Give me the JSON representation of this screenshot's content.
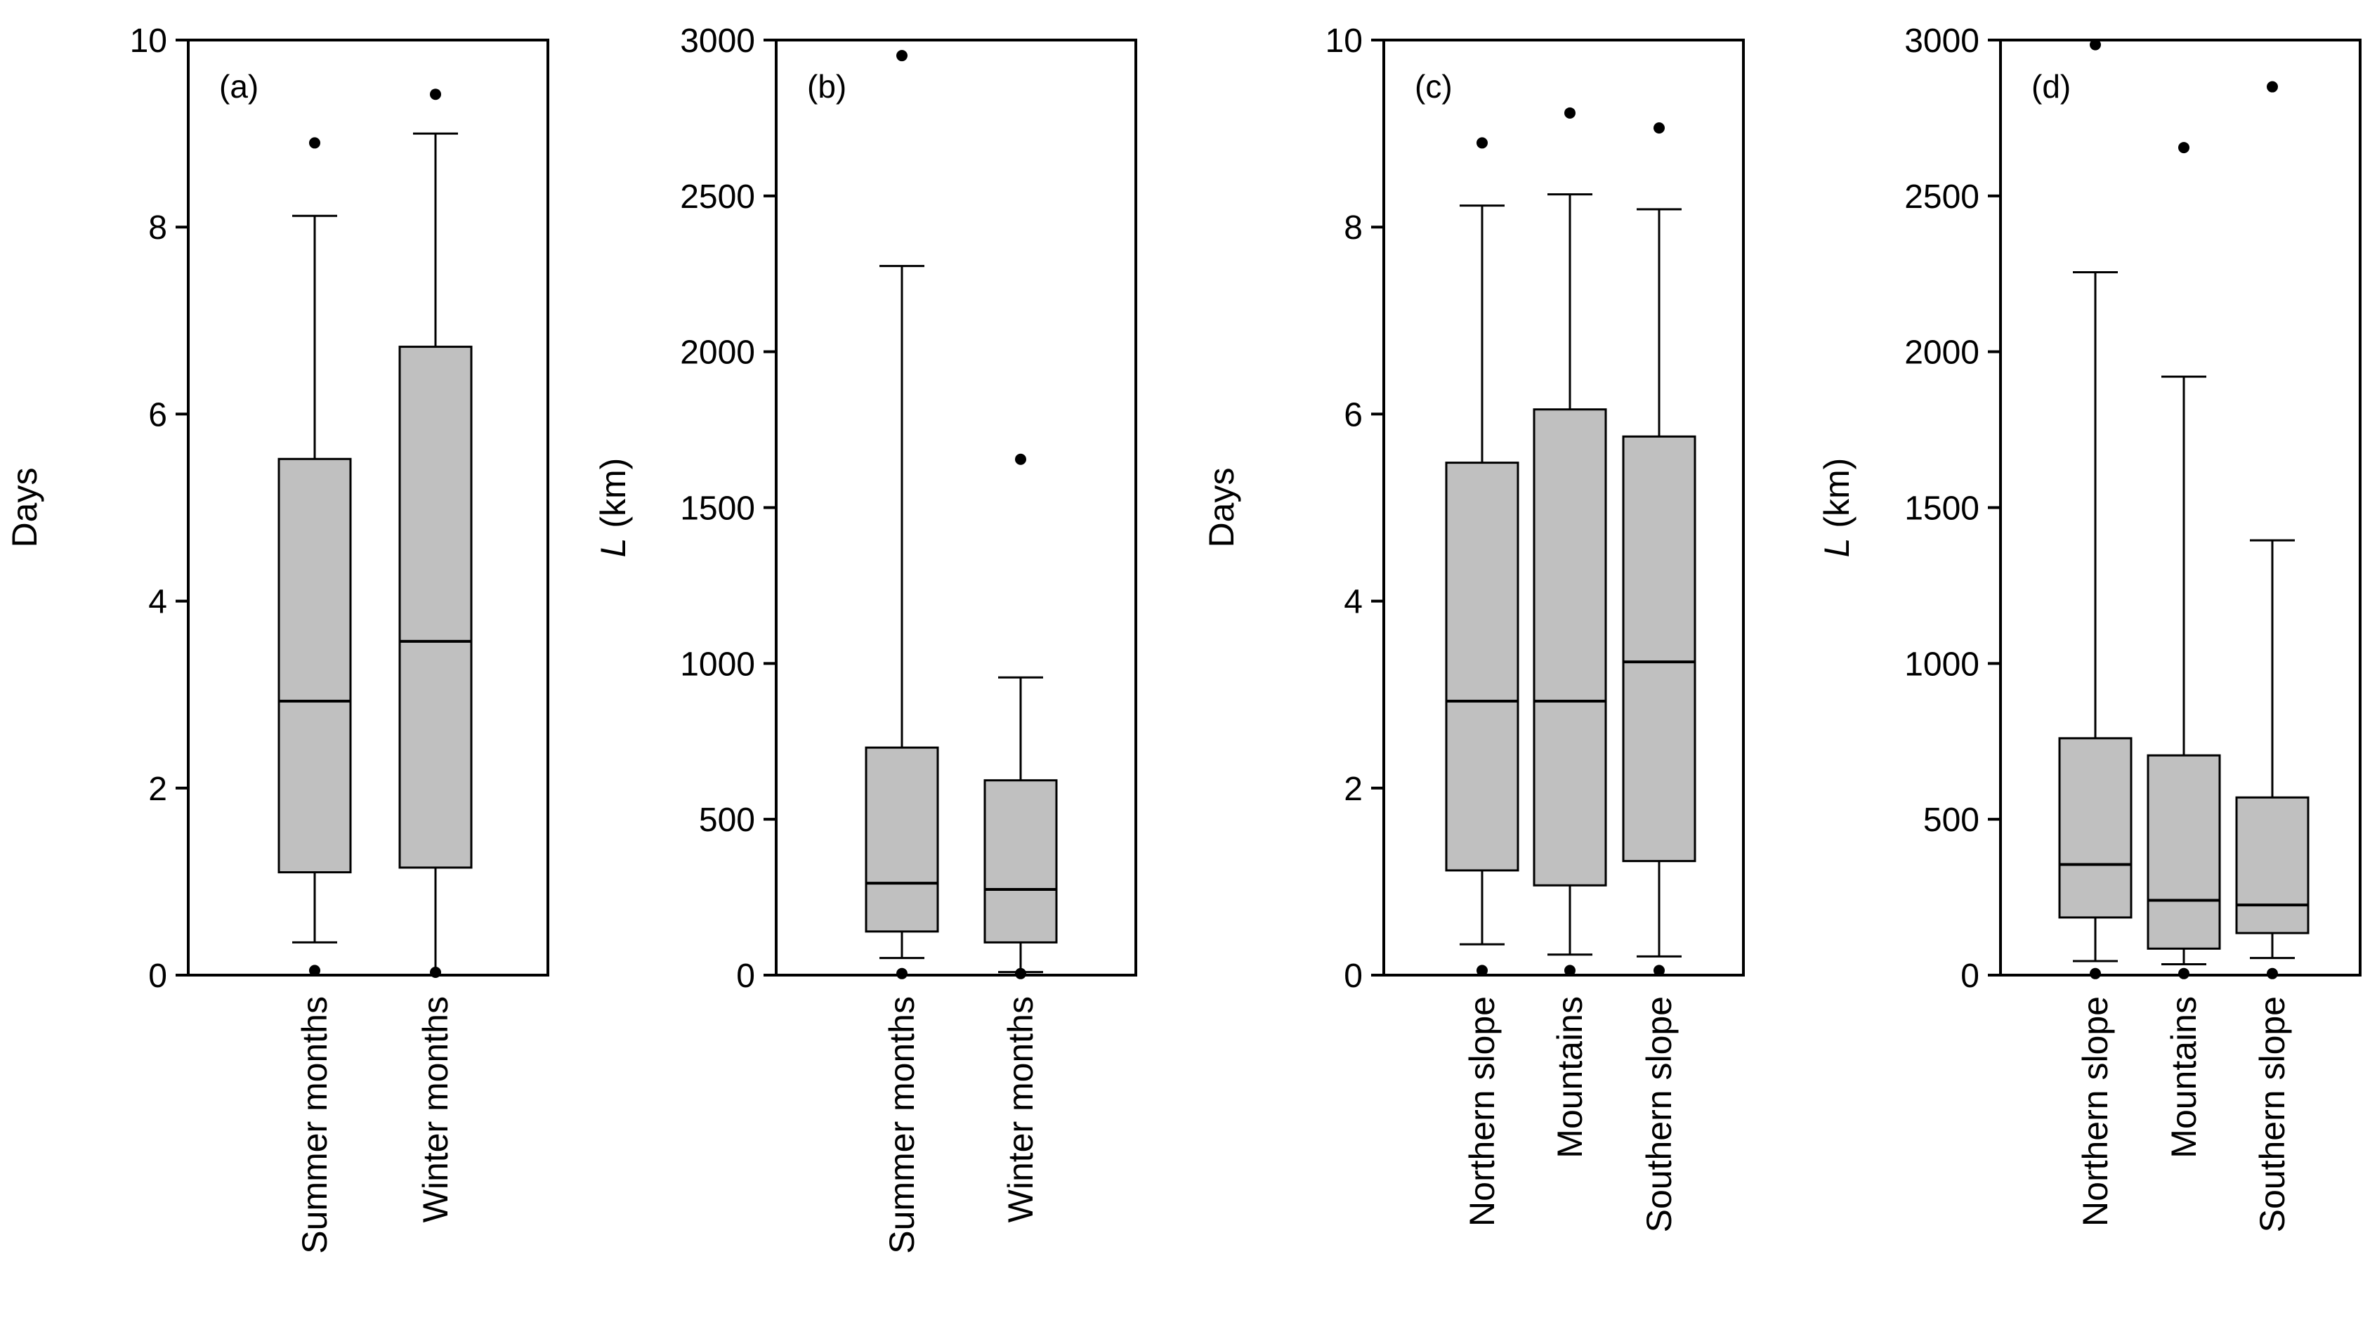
{
  "chart_data": [
    {
      "type": "boxplot",
      "panel_label": "(a)",
      "ylabel": "Days",
      "ylim": [
        0,
        10
      ],
      "yticks": [
        0,
        2,
        4,
        6,
        8,
        10
      ],
      "categories": [
        "Summer months",
        "Winter months"
      ],
      "boxes": [
        {
          "name": "Summer months",
          "whisker_low": 0.35,
          "q1": 1.1,
          "median": 2.93,
          "q3": 5.52,
          "whisker_high": 8.12,
          "outliers": [
            8.9,
            0.05
          ]
        },
        {
          "name": "Winter months",
          "whisker_low": 0.0,
          "q1": 1.15,
          "median": 3.57,
          "q3": 6.72,
          "whisker_high": 9.0,
          "outliers": [
            9.42,
            0.03
          ]
        }
      ]
    },
    {
      "type": "boxplot",
      "panel_label": "(b)",
      "ylabel": "L (km)",
      "ylabel_var": "L",
      "ylabel_unit": " (km)",
      "ylim": [
        0,
        3000
      ],
      "yticks": [
        0,
        500,
        1000,
        1500,
        2000,
        2500,
        3000
      ],
      "categories": [
        "Summer months",
        "Winter months"
      ],
      "boxes": [
        {
          "name": "Summer months",
          "whisker_low": 55,
          "q1": 140,
          "median": 295,
          "q3": 730,
          "whisker_high": 2275,
          "outliers": [
            2950,
            5
          ]
        },
        {
          "name": "Winter months",
          "whisker_low": 10,
          "q1": 105,
          "median": 275,
          "q3": 625,
          "whisker_high": 955,
          "outliers": [
            1655,
            5
          ]
        }
      ]
    },
    {
      "type": "boxplot",
      "panel_label": "(c)",
      "ylabel": "Days",
      "ylim": [
        0,
        10
      ],
      "yticks": [
        0,
        2,
        4,
        6,
        8,
        10
      ],
      "categories": [
        "Northern slope",
        "Mountains",
        "Southern slope"
      ],
      "boxes": [
        {
          "name": "Northern slope",
          "whisker_low": 0.33,
          "q1": 1.12,
          "median": 2.93,
          "q3": 5.48,
          "whisker_high": 8.23,
          "outliers": [
            8.9,
            0.05
          ]
        },
        {
          "name": "Mountains",
          "whisker_low": 0.22,
          "q1": 0.96,
          "median": 2.93,
          "q3": 6.05,
          "whisker_high": 8.35,
          "outliers": [
            9.22,
            0.05
          ]
        },
        {
          "name": "Southern slope",
          "whisker_low": 0.2,
          "q1": 1.22,
          "median": 3.35,
          "q3": 5.76,
          "whisker_high": 8.19,
          "outliers": [
            9.06,
            0.05
          ]
        }
      ]
    },
    {
      "type": "boxplot",
      "panel_label": "(d)",
      "ylabel": "L (km)",
      "ylabel_var": "L",
      "ylabel_unit": " (km)",
      "ylim": [
        0,
        3000
      ],
      "yticks": [
        0,
        500,
        1000,
        1500,
        2000,
        2500,
        3000
      ],
      "categories": [
        "Northern slope",
        "Mountains",
        "Southern slope"
      ],
      "boxes": [
        {
          "name": "Northern slope",
          "whisker_low": 45,
          "q1": 185,
          "median": 355,
          "q3": 760,
          "whisker_high": 2255,
          "outliers": [
            2985,
            5
          ]
        },
        {
          "name": "Mountains",
          "whisker_low": 35,
          "q1": 85,
          "median": 240,
          "q3": 705,
          "whisker_high": 1920,
          "outliers": [
            2655,
            5
          ]
        },
        {
          "name": "Southern slope",
          "whisker_low": 55,
          "q1": 135,
          "median": 225,
          "q3": 570,
          "whisker_high": 1395,
          "outliers": [
            2850,
            5
          ]
        }
      ]
    }
  ],
  "colors": {
    "box_fill": "#c0c0c0",
    "stroke": "#000000",
    "background": "#ffffff"
  }
}
